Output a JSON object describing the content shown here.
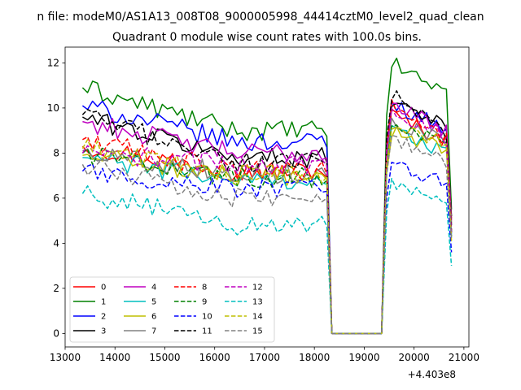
{
  "figure": {
    "suptitle": "n file: modeM0/AS1A13_008T08_9000005998_44414cztM0_level2_quad_clean",
    "title": "Quadrant 0 module wise count rates with 100.0s bins.",
    "offset_label": "+4.403e8"
  },
  "chart_data": {
    "type": "line",
    "title": "Quadrant 0 module wise count rates with 100.0s bins.",
    "xlabel": "",
    "ylabel": "",
    "x_offset": 440300000,
    "xlim": [
      13000,
      21100
    ],
    "ylim": [
      -0.6,
      12.7
    ],
    "xticks": [
      13000,
      14000,
      15000,
      16000,
      17000,
      18000,
      19000,
      20000,
      21000
    ],
    "yticks": [
      0,
      2,
      4,
      6,
      8,
      10,
      12
    ],
    "grid": false,
    "legend": {
      "placement": "lower-left",
      "columns": 4
    },
    "segments": [
      {
        "x_start": 13350,
        "x_end": 18250,
        "step": 100
      },
      {
        "x_start": 18350,
        "x_end": 19350,
        "step": 100
      },
      {
        "x_start": 19450,
        "x_end": 20750,
        "step": 100
      }
    ],
    "series": [
      {
        "name": "0",
        "color": "#ff0000",
        "dash": "solid",
        "levels": [
          8.3,
          7.2,
          9.8,
          8.4,
          5.1
        ]
      },
      {
        "name": "1",
        "color": "#008000",
        "dash": "solid",
        "levels": [
          10.9,
          9.0,
          12.1,
          10.6,
          5.5
        ]
      },
      {
        "name": "2",
        "color": "#0000ff",
        "dash": "solid",
        "levels": [
          10.1,
          8.5,
          10.3,
          9.0,
          4.8
        ]
      },
      {
        "name": "3",
        "color": "#000000",
        "dash": "solid",
        "levels": [
          9.6,
          7.8,
          10.5,
          9.2,
          5.2
        ]
      },
      {
        "name": "4",
        "color": "#bf00bf",
        "dash": "solid",
        "levels": [
          9.4,
          8.0,
          10.4,
          8.8,
          5.0
        ]
      },
      {
        "name": "5",
        "color": "#00bfbf",
        "dash": "solid",
        "levels": [
          7.8,
          6.8,
          9.1,
          8.0,
          4.4
        ]
      },
      {
        "name": "6",
        "color": "#bfbf00",
        "dash": "solid",
        "levels": [
          7.9,
          7.0,
          9.0,
          8.1,
          4.9
        ]
      },
      {
        "name": "7",
        "color": "#808080",
        "dash": "solid",
        "levels": [
          8.1,
          7.1,
          9.6,
          8.4,
          4.8
        ]
      },
      {
        "name": "8",
        "color": "#ff0000",
        "dash": "dashed",
        "levels": [
          8.6,
          7.2,
          10.2,
          8.4,
          4.6
        ]
      },
      {
        "name": "9",
        "color": "#008000",
        "dash": "dashed",
        "levels": [
          8.0,
          6.9,
          9.4,
          8.2,
          4.3
        ]
      },
      {
        "name": "10",
        "color": "#0000ff",
        "dash": "dashed",
        "levels": [
          7.2,
          6.4,
          7.5,
          6.6,
          3.6
        ]
      },
      {
        "name": "11",
        "color": "#000000",
        "dash": "dashed",
        "levels": [
          9.7,
          7.6,
          10.8,
          8.6,
          4.5
        ]
      },
      {
        "name": "12",
        "color": "#bf00bf",
        "dash": "dashed",
        "levels": [
          8.0,
          7.5,
          10.1,
          8.6,
          4.4
        ]
      },
      {
        "name": "13",
        "color": "#00bfbf",
        "dash": "dashed",
        "levels": [
          6.2,
          4.8,
          6.7,
          5.5,
          3.0
        ]
      },
      {
        "name": "14",
        "color": "#bfbf00",
        "dash": "dashed",
        "levels": [
          8.2,
          7.0,
          9.3,
          8.3,
          4.1
        ]
      },
      {
        "name": "15",
        "color": "#808080",
        "dash": "dashed",
        "levels": [
          7.5,
          6.0,
          8.8,
          7.4,
          4.2
        ]
      }
    ]
  }
}
